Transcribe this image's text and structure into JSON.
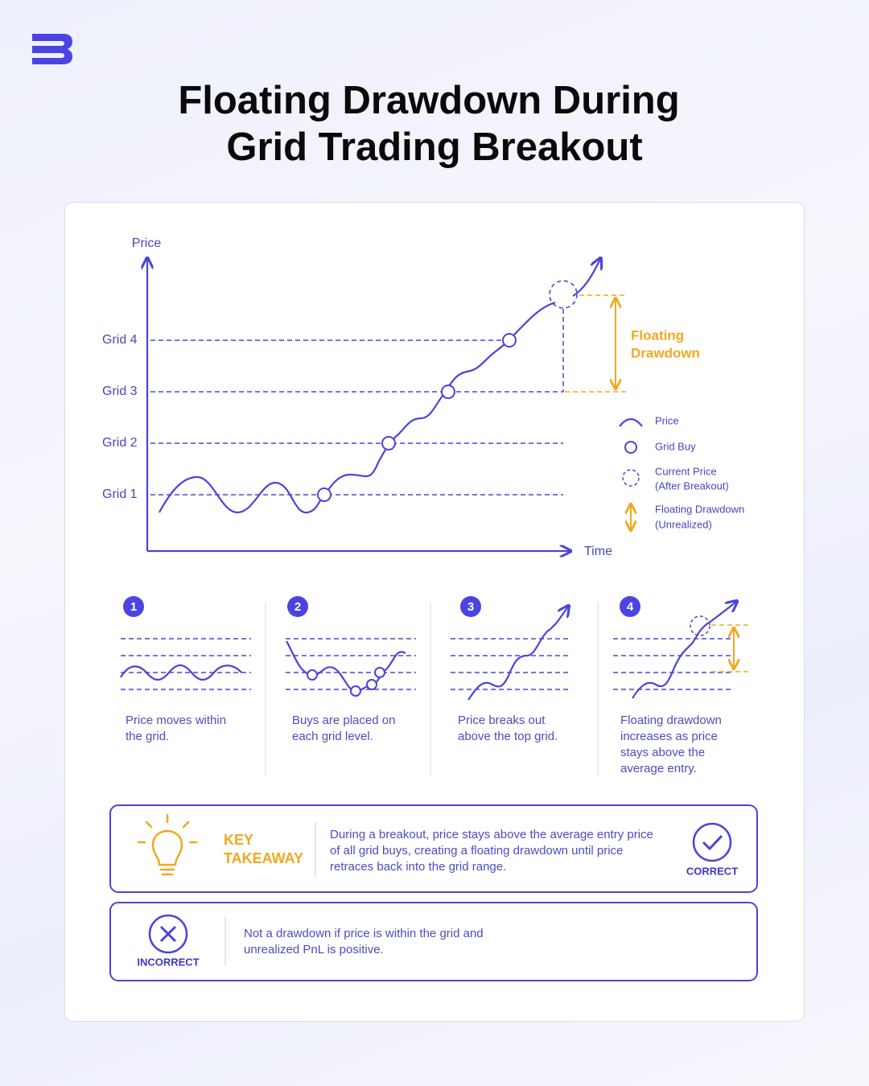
{
  "header": {
    "title_lines": [
      "Floating Drawdown During",
      "Grid Trading Breakout"
    ]
  },
  "main_diagram": {
    "y_axis_label": "Price",
    "x_axis_label": "Time",
    "grid_labels": [
      "Grid 4",
      "Grid 3",
      "Grid 2",
      "Grid 1"
    ],
    "annotation_lines": [
      "Floating",
      "Drawdown"
    ],
    "legend": [
      {
        "lines": [
          "Price"
        ]
      },
      {
        "lines": [
          "Grid Buy"
        ]
      },
      {
        "lines": [
          "Current Price",
          "(After Breakout)"
        ]
      },
      {
        "lines": [
          "Floating Drawdown",
          "(Unrealized)"
        ]
      }
    ]
  },
  "steps": [
    {
      "number": 1,
      "lines": [
        "Price moves within",
        "the grid."
      ]
    },
    {
      "number": 2,
      "lines": [
        "Buys are placed on",
        "each grid level."
      ]
    },
    {
      "number": 3,
      "lines": [
        "Price breaks out",
        "above the top grid."
      ]
    },
    {
      "number": 4,
      "lines": [
        "Floating drawdown",
        "increases as price",
        "stays above the",
        "average entry."
      ]
    }
  ],
  "key_takeaway": {
    "label_lines": [
      "KEY",
      "TAKEAWAY"
    ],
    "text_lines": [
      "During a breakout, price stays above the average entry price",
      "of all grid buys, creating a floating drawdown until price",
      "retraces back into the grid range."
    ],
    "badge": "CORRECT"
  },
  "incorrect": {
    "badge": "INCORRECT",
    "text_lines": [
      "Not a drawdown if price is within the grid and",
      "unrealized PnL is positive."
    ]
  }
}
